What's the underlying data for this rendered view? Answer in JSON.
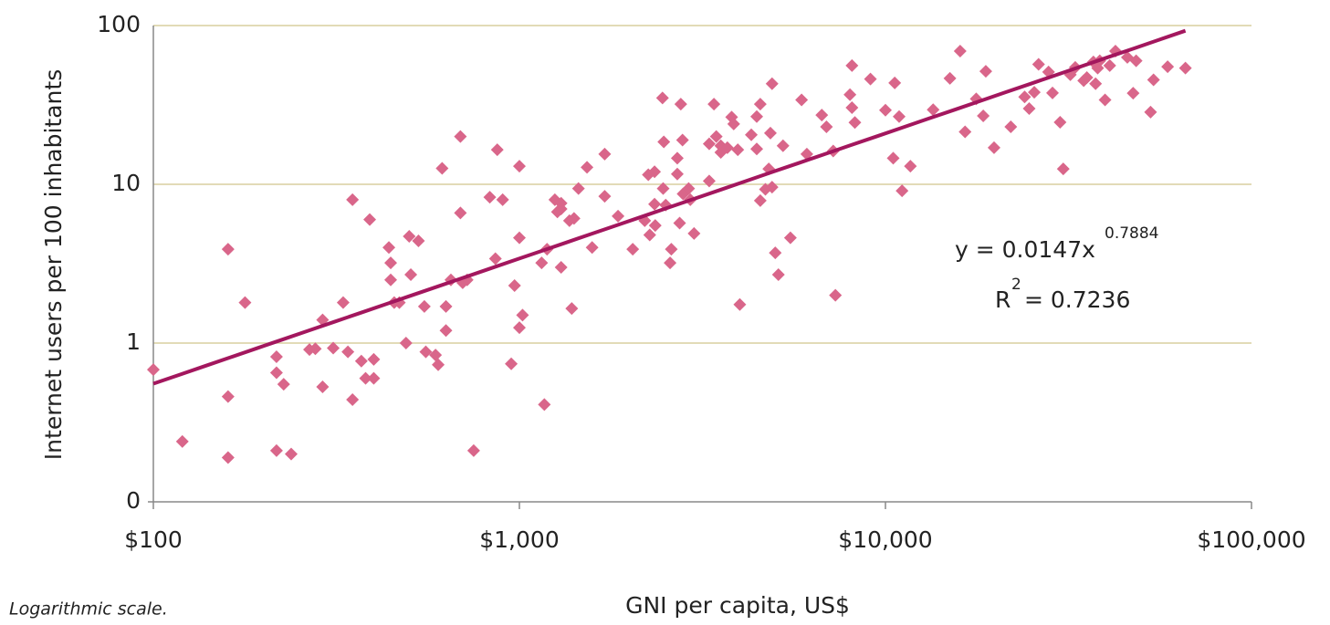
{
  "chart_data": {
    "type": "scatter",
    "xlabel": "GNI per capita, US$",
    "ylabel": "Internet users per 100 inhabitants",
    "note": "Logarithmic scale.",
    "xlog": true,
    "ylog": true,
    "xlim": [
      100,
      100000
    ],
    "ylim": [
      0.1,
      100
    ],
    "xticks": [
      {
        "value": 100,
        "label": "$100"
      },
      {
        "value": 1000,
        "label": "$1,000"
      },
      {
        "value": 10000,
        "label": "$10,000"
      },
      {
        "value": 100000,
        "label": "$100,000"
      }
    ],
    "yticks": [
      {
        "value": 0.1,
        "label": "0"
      },
      1,
      10,
      100
    ],
    "grid": true,
    "color": "#d9668a",
    "x": [
      100,
      120,
      160,
      160,
      160,
      178,
      217,
      217,
      217,
      227,
      238,
      267,
      277,
      290,
      290,
      310,
      330,
      340,
      350,
      350,
      370,
      380,
      390,
      400,
      400,
      440,
      445,
      445,
      455,
      470,
      490,
      500,
      505,
      530,
      550,
      555,
      590,
      600,
      615,
      630,
      630,
      650,
      690,
      690,
      700,
      720,
      750,
      830,
      860,
      870,
      900,
      950,
      970,
      1000,
      1000,
      1020,
      1000,
      1150,
      1170,
      1190,
      1250,
      1270,
      1300,
      1300,
      1300,
      1370,
      1390,
      1410,
      1450,
      1530,
      1580,
      1710,
      1710,
      1860,
      2040,
      2200,
      2250,
      2270,
      2340,
      2350,
      2340,
      2460,
      2480,
      2470,
      2510,
      2580,
      2600,
      2700,
      2700,
      2740,
      2760,
      2790,
      2800,
      2900,
      2930,
      3000,
      3300,
      3300,
      3400,
      3450,
      3550,
      3550,
      3700,
      3800,
      3850,
      3950,
      4000,
      4300,
      4450,
      4450,
      4550,
      4550,
      4700,
      4800,
      4850,
      4900,
      4900,
      5000,
      5100,
      5250,
      5500,
      5900,
      6100,
      6700,
      6900,
      7200,
      7300,
      8000,
      8100,
      8250,
      8100,
      9100,
      10000,
      10500,
      10600,
      10900,
      11100,
      11700,
      13500,
      15000,
      16000,
      16500,
      17700,
      18500,
      18800,
      19800,
      22000,
      24000,
      24700,
      25500,
      26200,
      27900,
      28600,
      30000,
      30600,
      32000,
      33000,
      34800,
      35500,
      37000,
      37500,
      38000,
      38500,
      39800,
      41000,
      42500,
      45800,
      47500,
      48400,
      53000,
      54000,
      59000,
      66000
    ],
    "values": [
      0.68,
      0.24,
      3.9,
      0.46,
      0.19,
      1.8,
      0.82,
      0.65,
      0.21,
      0.55,
      0.2,
      0.91,
      0.92,
      1.4,
      0.53,
      0.93,
      1.8,
      0.88,
      0.44,
      8,
      0.77,
      0.6,
      6,
      0.79,
      0.6,
      4,
      3.2,
      2.5,
      1.8,
      1.8,
      1.0,
      4.7,
      2.7,
      4.4,
      1.7,
      0.88,
      0.84,
      0.73,
      12.6,
      1.2,
      1.7,
      2.5,
      20,
      6.6,
      2.4,
      2.5,
      0.21,
      8.3,
      3.4,
      16.5,
      8,
      0.74,
      2.3,
      13,
      4.6,
      1.5,
      1.25,
      3.2,
      0.41,
      3.9,
      8,
      6.7,
      7.6,
      7,
      3,
      5.9,
      1.65,
      6.1,
      9.4,
      12.8,
      4,
      8.4,
      15.5,
      6.3,
      3.9,
      5.9,
      11.5,
      4.8,
      12,
      5.5,
      7.5,
      35,
      18.5,
      9.4,
      7.4,
      3.2,
      3.9,
      14.6,
      11.6,
      5.7,
      32,
      19,
      8.7,
      9.4,
      8,
      4.9,
      10.5,
      18,
      32,
      20,
      15.9,
      17.5,
      17,
      26.5,
      24,
      16.5,
      1.75,
      20.5,
      26.7,
      16.7,
      32,
      7.9,
      9.3,
      12.5,
      21,
      43,
      9.6,
      3.7,
      2.7,
      17.5,
      4.6,
      34,
      15.5,
      27.3,
      23,
      16.2,
      2,
      36.7,
      30.4,
      24.5,
      56,
      46,
      29.3,
      14.6,
      43.5,
      26.7,
      9.1,
      13,
      29.5,
      46.5,
      69,
      21.4,
      34.5,
      27,
      51.5,
      17,
      23,
      35.5,
      30,
      38,
      57,
      51,
      37.6,
      24.6,
      12.5,
      49,
      54.5,
      45,
      47,
      59,
      43,
      54,
      60,
      34,
      56,
      69,
      63,
      37.5,
      60,
      28.5,
      45.5,
      55,
      54
    ],
    "trendline": {
      "color": "#a3175e",
      "coefficient": 0.0147,
      "exponent": 0.7884,
      "x": [
        100,
        66000
      ],
      "equation": "y = 0.0147x",
      "r2_base": "R",
      "r2_sup": "2",
      "r2_text": "= 0.7236"
    }
  }
}
